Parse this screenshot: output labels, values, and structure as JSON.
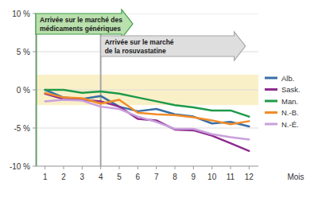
{
  "chart_data": {
    "type": "line",
    "x": [
      1,
      2,
      3,
      4,
      5,
      6,
      7,
      8,
      9,
      10,
      11,
      12
    ],
    "xlim": [
      0.5,
      12.5
    ],
    "xticks": [
      1,
      2,
      3,
      4,
      5,
      6,
      7,
      8,
      9,
      10,
      11,
      12
    ],
    "x_label": "Mois",
    "ylim": [
      -10,
      10
    ],
    "yticks": [
      {
        "value": -10,
        "label": "-10 %"
      },
      {
        "value": -5,
        "label": "-5 %"
      },
      {
        "value": 0,
        "label": "0 %"
      },
      {
        "value": 5,
        "label": "5 %"
      },
      {
        "value": 10,
        "label": "10 %"
      }
    ],
    "grid": true,
    "legend": "right",
    "band": [
      -2,
      2
    ],
    "annotations": [
      {
        "text": [
          "Arrivée sur le marché des",
          "médicaments génériques"
        ],
        "x": 0.5,
        "color": "#3c9a45"
      },
      {
        "text": [
          "Arrivée sur le marché",
          "de la rosuvastatine"
        ],
        "x": 4,
        "color": "#a6a6a6"
      }
    ],
    "series": [
      {
        "name": "Alb.",
        "color": "#3a6ea5",
        "values": [
          0,
          -1,
          -1.2,
          -0.8,
          -2.2,
          -2.8,
          -2.5,
          -3.2,
          -3.5,
          -4.4,
          -4.2,
          -4.8
        ]
      },
      {
        "name": "Sask.",
        "color": "#8e2c8e",
        "values": [
          -0.5,
          -1.2,
          -1.3,
          -1.5,
          -2.2,
          -3.8,
          -4.0,
          -5.2,
          -5.3,
          -6.0,
          -7.0,
          -8.0
        ]
      },
      {
        "name": "Man.",
        "color": "#1e9a4a",
        "values": [
          0,
          0,
          -0.4,
          -0.2,
          -0.5,
          -1.0,
          -1.5,
          -2.0,
          -2.3,
          -2.7,
          -2.7,
          -3.5
        ]
      },
      {
        "name": "N.-B.",
        "color": "#f28c28",
        "values": [
          -0.4,
          -1.0,
          -1.1,
          -1.8,
          -1.3,
          -3.0,
          -3.2,
          -3.3,
          -3.6,
          -4.0,
          -4.5,
          -4.1
        ]
      },
      {
        "name": "N.-É.",
        "color": "#c9a0dc",
        "values": [
          -1.5,
          -1.3,
          -1.4,
          -2.2,
          -2.5,
          -3.5,
          -4.2,
          -5.1,
          -5.1,
          -5.8,
          -6.2,
          -6.5
        ]
      }
    ]
  }
}
